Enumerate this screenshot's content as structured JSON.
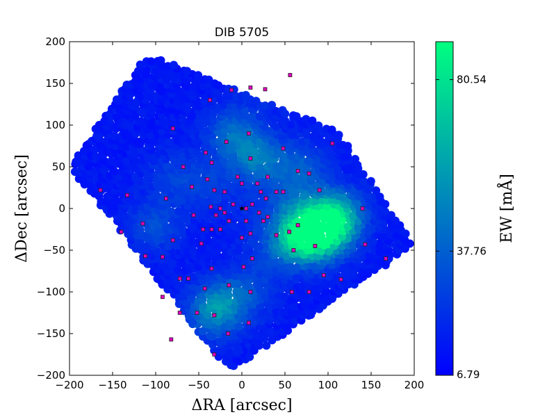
{
  "chart_data": {
    "type": "scatter",
    "title": "DIB 5705",
    "xlabel": "ΔRA [arcsec]",
    "ylabel": "ΔDec [arcsec]",
    "xlim": [
      -200,
      200
    ],
    "ylim": [
      -200,
      200
    ],
    "xticks": [
      -200,
      -150,
      -100,
      -50,
      0,
      50,
      100,
      150,
      200
    ],
    "yticks": [
      -200,
      -150,
      -100,
      -50,
      0,
      50,
      100,
      150,
      200
    ],
    "grid": false,
    "colorbar": {
      "label": "EW [mÅ]",
      "min": 6.79,
      "max": 90.0,
      "ticks": [
        6.79,
        37.76,
        80.54
      ],
      "colors": [
        "#0000ff",
        "#00ff80"
      ]
    },
    "center_marker": {
      "x": 0,
      "y": 0,
      "symbol": "star"
    },
    "regions": [
      {
        "x": 10,
        "y": -5,
        "ew": 20
      },
      {
        "x": 60,
        "y": 10,
        "ew": 30
      },
      {
        "x": -100,
        "y": -20,
        "ew": 35
      },
      {
        "x": -80,
        "y": 40,
        "ew": 28
      },
      {
        "x": 20,
        "y": 60,
        "ew": 50
      },
      {
        "x": -10,
        "y": 90,
        "ew": 45
      },
      {
        "x": 90,
        "y": -30,
        "ew": 75
      },
      {
        "x": 110,
        "y": -10,
        "ew": 85
      },
      {
        "x": 70,
        "y": -30,
        "ew": 80
      },
      {
        "x": -30,
        "y": -120,
        "ew": 62
      },
      {
        "x": 5,
        "y": -100,
        "ew": 35
      },
      {
        "x": -40,
        "y": 30,
        "ew": 28
      },
      {
        "x": 70,
        "y": 50,
        "ew": 38
      },
      {
        "x": 40,
        "y": -50,
        "ew": 30
      },
      {
        "x": 30,
        "y": 140,
        "ew": 22
      }
    ],
    "fiber_centers": [
      {
        "x": 10,
        "y": 145
      },
      {
        "x": 27,
        "y": 143
      },
      {
        "x": 56,
        "y": 160
      },
      {
        "x": -12,
        "y": 142
      },
      {
        "x": -37,
        "y": 130
      },
      {
        "x": 8,
        "y": 90
      },
      {
        "x": -80,
        "y": 96
      },
      {
        "x": -42,
        "y": 67
      },
      {
        "x": -18,
        "y": 80
      },
      {
        "x": 10,
        "y": 60
      },
      {
        "x": 48,
        "y": 72
      },
      {
        "x": 105,
        "y": 78
      },
      {
        "x": -68,
        "y": 50
      },
      {
        "x": -35,
        "y": 55
      },
      {
        "x": 65,
        "y": 45
      },
      {
        "x": 78,
        "y": 42
      },
      {
        "x": -40,
        "y": 35
      },
      {
        "x": -5,
        "y": 38
      },
      {
        "x": 30,
        "y": 38
      },
      {
        "x": -58,
        "y": 26
      },
      {
        "x": -32,
        "y": 22
      },
      {
        "x": -20,
        "y": 20
      },
      {
        "x": 0,
        "y": 30
      },
      {
        "x": 18,
        "y": 30
      },
      {
        "x": 22,
        "y": 20
      },
      {
        "x": 40,
        "y": 20
      },
      {
        "x": 48,
        "y": 20
      },
      {
        "x": 90,
        "y": 22
      },
      {
        "x": -164,
        "y": 22
      },
      {
        "x": -133,
        "y": 16
      },
      {
        "x": -88,
        "y": 12
      },
      {
        "x": 28,
        "y": 12
      },
      {
        "x": 12,
        "y": 5
      },
      {
        "x": -10,
        "y": 5
      },
      {
        "x": -36,
        "y": 2
      },
      {
        "x": -25,
        "y": 0
      },
      {
        "x": 5,
        "y": 0
      },
      {
        "x": 140,
        "y": 0
      },
      {
        "x": -56,
        "y": -8
      },
      {
        "x": -30,
        "y": -8
      },
      {
        "x": -20,
        "y": -5
      },
      {
        "x": 20,
        "y": -5
      },
      {
        "x": 30,
        "y": -10
      },
      {
        "x": -115,
        "y": -18
      },
      {
        "x": -15,
        "y": -15
      },
      {
        "x": 5,
        "y": -15
      },
      {
        "x": 25,
        "y": -15
      },
      {
        "x": 65,
        "y": -20
      },
      {
        "x": -140,
        "y": -28
      },
      {
        "x": -45,
        "y": -25
      },
      {
        "x": -25,
        "y": -25
      },
      {
        "x": -35,
        "y": -25
      },
      {
        "x": 10,
        "y": -30
      },
      {
        "x": 40,
        "y": -32
      },
      {
        "x": 55,
        "y": -28
      },
      {
        "x": 0,
        "y": -35
      },
      {
        "x": -80,
        "y": -38
      },
      {
        "x": -47,
        "y": -42
      },
      {
        "x": 85,
        "y": -45
      },
      {
        "x": 143,
        "y": -43
      },
      {
        "x": 60,
        "y": -50
      },
      {
        "x": -112,
        "y": -57
      },
      {
        "x": -92,
        "y": -58
      },
      {
        "x": 12,
        "y": -60
      },
      {
        "x": 167,
        "y": -60
      },
      {
        "x": 2,
        "y": -70
      },
      {
        "x": -35,
        "y": -72
      },
      {
        "x": 95,
        "y": -80
      },
      {
        "x": -72,
        "y": -84
      },
      {
        "x": -62,
        "y": -84
      },
      {
        "x": 115,
        "y": -85
      },
      {
        "x": -15,
        "y": -92
      },
      {
        "x": -43,
        "y": -96
      },
      {
        "x": 10,
        "y": -100
      },
      {
        "x": 58,
        "y": -100
      },
      {
        "x": 78,
        "y": -100
      },
      {
        "x": -92,
        "y": -106
      },
      {
        "x": -72,
        "y": -125
      },
      {
        "x": -52,
        "y": -125
      },
      {
        "x": -32,
        "y": -128
      },
      {
        "x": 8,
        "y": -137
      },
      {
        "x": -16,
        "y": -150
      },
      {
        "x": -82,
        "y": -157
      },
      {
        "x": -32,
        "y": -175
      }
    ]
  }
}
